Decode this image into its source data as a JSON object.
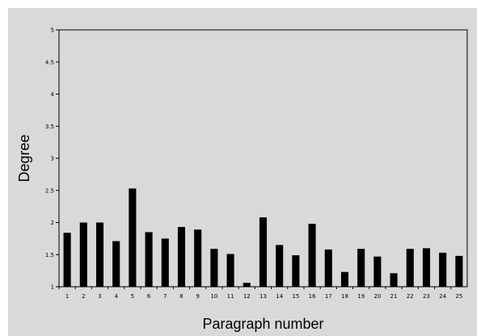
{
  "chart_data": {
    "type": "bar",
    "title": "",
    "xlabel": "Paragraph number",
    "ylabel": "Degree",
    "ylim": [
      1,
      5
    ],
    "yticks": [
      "1",
      "1.5",
      "2",
      "2.5",
      "3",
      "3.5",
      "4",
      "4.5",
      "5"
    ],
    "grid": false,
    "categories": [
      "1",
      "2",
      "3",
      "4",
      "5",
      "6",
      "7",
      "8",
      "9",
      "10",
      "11",
      "12",
      "13",
      "14",
      "15",
      "16",
      "17",
      "18",
      "19",
      "20",
      "21",
      "22",
      "23",
      "24",
      "25"
    ],
    "values": [
      1.84,
      2.0,
      2.0,
      1.71,
      2.53,
      1.85,
      1.75,
      1.93,
      1.89,
      1.59,
      1.51,
      1.06,
      2.08,
      1.65,
      1.49,
      1.98,
      1.58,
      1.23,
      1.59,
      1.47,
      1.21,
      1.59,
      1.6,
      1.53,
      1.48
    ],
    "colors": {
      "bar": "#000000",
      "background": "#d9d9d9",
      "plot_area": "#d9d9d9",
      "axis": "#000000"
    }
  }
}
